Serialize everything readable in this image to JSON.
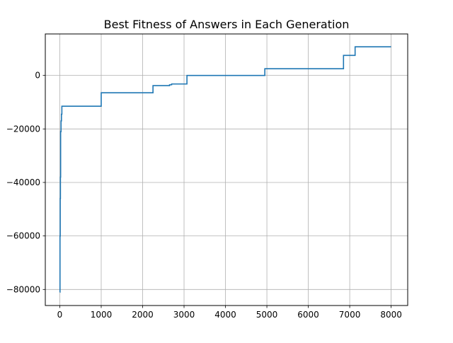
{
  "chart_data": {
    "type": "line",
    "title": "Best Fitness of Answers in Each Generation",
    "xlabel": "",
    "ylabel": "",
    "xlim": [
      -350,
      8400
    ],
    "ylim": [
      -86000,
      15500
    ],
    "x_ticks": [
      0,
      1000,
      2000,
      3000,
      4000,
      5000,
      6000,
      7000,
      8000
    ],
    "x_tick_labels": [
      "0",
      "1000",
      "2000",
      "3000",
      "4000",
      "5000",
      "6000",
      "7000",
      "8000"
    ],
    "y_ticks": [
      -80000,
      -60000,
      -40000,
      -20000,
      0
    ],
    "y_tick_labels": [
      "−80000",
      "−60000",
      "−40000",
      "−20000",
      "0"
    ],
    "grid": true,
    "line_style": "step",
    "series": [
      {
        "name": "",
        "color": "#1f77b4",
        "x": [
          0,
          5,
          10,
          15,
          20,
          30,
          40,
          50,
          1000,
          2250,
          2650,
          2700,
          3070,
          4950,
          6850,
          7130,
          7999
        ],
        "y": [
          -81000,
          -60000,
          -46000,
          -38000,
          -21000,
          -17000,
          -14500,
          -11500,
          -6500,
          -3800,
          -3500,
          -3200,
          0,
          2500,
          7500,
          10700,
          10700
        ]
      }
    ]
  }
}
